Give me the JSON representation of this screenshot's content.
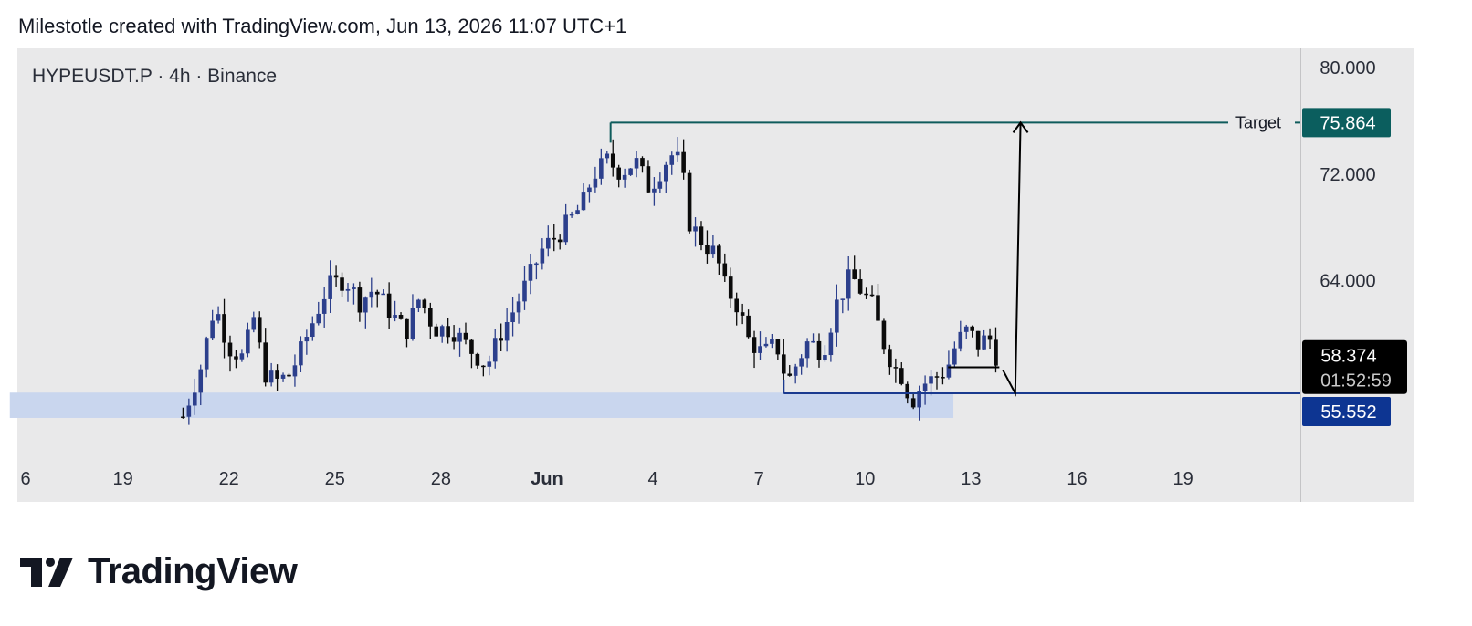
{
  "header": "Milestotle created with TradingView.com, Jun 13, 2026 11:07 UTC+1",
  "brand": {
    "name": "TradingView",
    "logo_icon": "tradingview-logo-icon"
  },
  "colors": {
    "plot_bg": "#e9e9ea",
    "axis_bg": "#e9e9ea",
    "bull": "#2c3f8c",
    "bear": "#0b0b0b",
    "target": "#0f5c5c",
    "support": "#1a3a8f",
    "zone": "#c9d6ee",
    "last_price_bg": "#000000",
    "support_label_bg": "#0d3592",
    "target_label_bg": "#0b5e5e"
  },
  "chart_data": {
    "type": "candlestick",
    "symbol_label": "HYPEUSDT.P · 4h · Binance",
    "timeframe": "4h",
    "y_ticks": [
      "80.000",
      "72.000",
      "64.000"
    ],
    "y_tick_values": [
      80,
      72,
      64
    ],
    "x_ticks": [
      {
        "label": "6",
        "day": 16
      },
      {
        "label": "19",
        "day": 19
      },
      {
        "label": "22",
        "day": 22
      },
      {
        "label": "25",
        "day": 25
      },
      {
        "label": "28",
        "day": 28
      },
      {
        "label": "Jun",
        "day": 31
      },
      {
        "label": "4",
        "day": 34
      },
      {
        "label": "7",
        "day": 37
      },
      {
        "label": "10",
        "day": 40
      },
      {
        "label": "13",
        "day": 43
      },
      {
        "label": "16",
        "day": 46
      },
      {
        "label": "19",
        "day": 49
      }
    ],
    "target": {
      "label": "Target",
      "price": 75.864,
      "price_label": "75.864"
    },
    "support": {
      "price": 55.552,
      "price_label": "55.552"
    },
    "last_price": {
      "price": 58.374,
      "price_label": "58.374",
      "countdown": "01:52:59"
    },
    "demand_zone": {
      "from_day": 15.8,
      "to_day": 42.5,
      "low": 53.7,
      "high": 55.6
    },
    "projection": {
      "from_day": 43.9,
      "from_price": 57.3,
      "to_day": 44.25,
      "to_price": 55.55,
      "target_day": 44.4
    },
    "waypoints": [
      [
        20.7,
        53.8
      ],
      [
        21.2,
        57.5
      ],
      [
        21.6,
        62.2
      ],
      [
        22.0,
        59.0
      ],
      [
        22.4,
        58.2
      ],
      [
        22.7,
        61.2
      ],
      [
        23.0,
        57.1
      ],
      [
        23.3,
        56.4
      ],
      [
        23.7,
        56.9
      ],
      [
        24.0,
        58.5
      ],
      [
        24.4,
        61.1
      ],
      [
        24.8,
        63.6
      ],
      [
        25.3,
        64.1
      ],
      [
        25.7,
        62.4
      ],
      [
        26.1,
        63.4
      ],
      [
        26.5,
        61.9
      ],
      [
        27.0,
        60.1
      ],
      [
        27.4,
        62.8
      ],
      [
        27.8,
        60.4
      ],
      [
        28.3,
        60.4
      ],
      [
        28.8,
        58.9
      ],
      [
        29.3,
        57.6
      ],
      [
        29.7,
        60.1
      ],
      [
        30.1,
        62.0
      ],
      [
        30.5,
        64.3
      ],
      [
        30.9,
        66.5
      ],
      [
        31.3,
        67.4
      ],
      [
        31.7,
        68.7
      ],
      [
        32.0,
        69.7
      ],
      [
        32.3,
        71.9
      ],
      [
        32.7,
        73.0
      ],
      [
        33.1,
        72.1
      ],
      [
        33.5,
        73.0
      ],
      [
        33.9,
        70.9
      ],
      [
        34.1,
        71.8
      ],
      [
        34.5,
        73.5
      ],
      [
        34.8,
        72.8
      ],
      [
        35.0,
        68.5
      ],
      [
        35.4,
        66.9
      ],
      [
        35.8,
        65.9
      ],
      [
        36.0,
        63.7
      ],
      [
        36.4,
        62.1
      ],
      [
        36.7,
        59.6
      ],
      [
        37.1,
        58.5
      ],
      [
        37.5,
        59.2
      ],
      [
        37.8,
        56.3
      ],
      [
        38.1,
        58.0
      ],
      [
        38.4,
        59.5
      ],
      [
        38.8,
        58.6
      ],
      [
        39.2,
        62.3
      ],
      [
        39.6,
        64.4
      ],
      [
        39.9,
        63.2
      ],
      [
        40.2,
        62.2
      ],
      [
        40.5,
        59.5
      ],
      [
        40.8,
        57.6
      ],
      [
        41.1,
        56.7
      ],
      [
        41.3,
        54.8
      ],
      [
        41.6,
        56.2
      ],
      [
        41.9,
        56.6
      ],
      [
        42.3,
        57.3
      ],
      [
        42.6,
        59.4
      ],
      [
        42.9,
        60.3
      ],
      [
        43.2,
        59.2
      ],
      [
        43.5,
        59.8
      ],
      [
        43.7,
        58.4
      ]
    ]
  }
}
